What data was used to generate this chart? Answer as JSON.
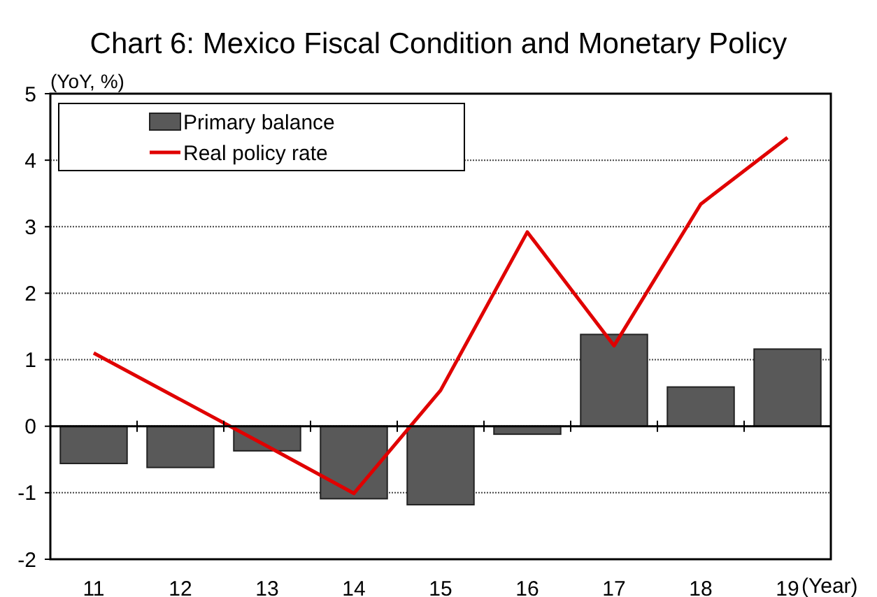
{
  "chart_data": {
    "type": "bar",
    "title": "Chart 6: Mexico Fiscal Condition and Monetary Policy",
    "ylabel": "(YoY, %)",
    "xlabel": "(Year)",
    "categories": [
      "11",
      "12",
      "13",
      "14",
      "15",
      "16",
      "17",
      "18",
      "19"
    ],
    "series": [
      {
        "name": "Primary balance",
        "color": "#595959",
        "values": [
          -0.56,
          -0.62,
          -0.37,
          -1.09,
          -1.18,
          -0.12,
          1.38,
          0.59,
          1.16
        ]
      },
      {
        "name": "Real policy rate",
        "type": "line",
        "color": "#e00000",
        "values": [
          1.1,
          0.4,
          -0.3,
          -1.01,
          0.54,
          2.92,
          1.21,
          3.34,
          4.34
        ]
      }
    ],
    "ylim": [
      -2,
      5
    ],
    "yticks": [
      -2,
      -1,
      0,
      1,
      2,
      3,
      4,
      5
    ],
    "grid": "y",
    "legend": "top left",
    "marker": "none",
    "line_style": "solid"
  }
}
